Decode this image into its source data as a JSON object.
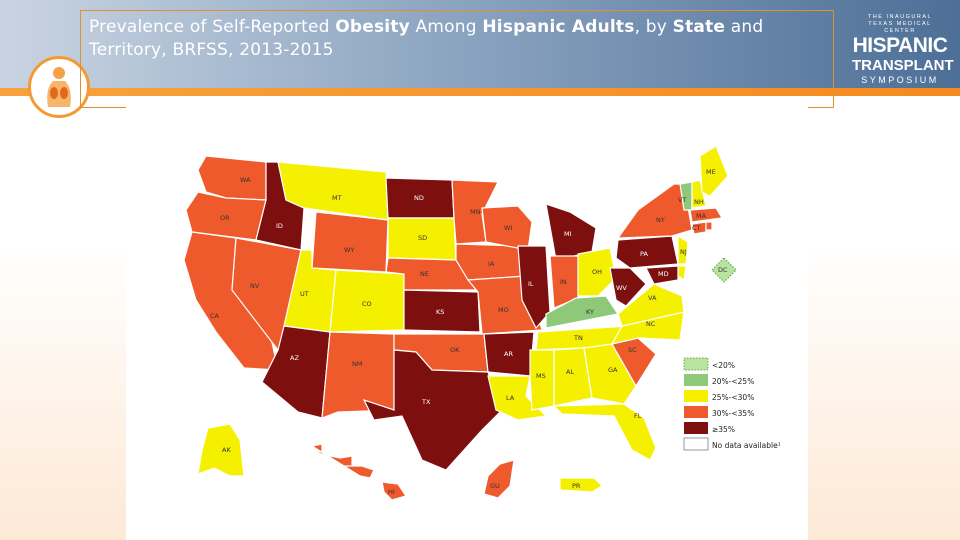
{
  "slide": {
    "title_parts": [
      {
        "text": "Prevalence of Self-Reported ",
        "bold": false
      },
      {
        "text": "Obesity",
        "bold": true
      },
      {
        "text": " Among ",
        "bold": false
      },
      {
        "text": "Hispanic Adults",
        "bold": true
      },
      {
        "text": ", by ",
        "bold": false
      },
      {
        "text": "State",
        "bold": true
      },
      {
        "text": " and Territory, BRFSS, 2013-2015",
        "bold": false
      }
    ]
  },
  "brand": {
    "line1": "THE INAUGURAL",
    "line2": "TEXAS MEDICAL CENTER",
    "line3": "HISPANIC",
    "line4": "TRANSPLANT",
    "line5": "SYMPOSIUM"
  },
  "colors": {
    "lt20": "#b9e3a0",
    "c20_25": "#8ec97a",
    "c25_30": "#f5f000",
    "c30_35": "#ef5a2c",
    "ge35": "#7d0f0f",
    "na": "#ffffff"
  },
  "legend": [
    {
      "key": "lt20",
      "label": "<20%"
    },
    {
      "key": "c20_25",
      "label": "20%-<25%"
    },
    {
      "key": "c25_30",
      "label": "25%-<30%"
    },
    {
      "key": "c30_35",
      "label": "30%-<35%"
    },
    {
      "key": "ge35",
      "label": "≥35%"
    },
    {
      "key": "na",
      "label": "No data available¹"
    }
  ],
  "states": {
    "WA": "c30_35",
    "OR": "c30_35",
    "CA": "c30_35",
    "NV": "c30_35",
    "ID": "ge35",
    "MT": "c25_30",
    "WY": "c30_35",
    "UT": "c25_30",
    "CO": "c25_30",
    "AZ": "ge35",
    "NM": "c30_35",
    "ND": "ge35",
    "SD": "c25_30",
    "NE": "c30_35",
    "KS": "ge35",
    "OK": "c30_35",
    "TX": "ge35",
    "MN": "c30_35",
    "IA": "c30_35",
    "MO": "c30_35",
    "AR": "ge35",
    "LA": "c25_30",
    "WI": "c30_35",
    "IL": "ge35",
    "MI": "ge35",
    "IN": "c30_35",
    "OH": "c25_30",
    "KY": "c20_25",
    "TN": "c25_30",
    "MS": "c25_30",
    "AL": "c25_30",
    "GA": "c25_30",
    "FL": "c25_30",
    "SC": "c30_35",
    "NC": "c25_30",
    "VA": "c25_30",
    "WV": "ge35",
    "PA": "ge35",
    "NY": "c30_35",
    "VT": "c20_25",
    "NH": "c25_30",
    "ME": "c25_30",
    "MA": "c30_35",
    "RI": "c30_35",
    "CT": "c30_35",
    "NJ": "c25_30",
    "DE": "c25_30",
    "MD": "ge35",
    "DC": "lt20",
    "AK": "c25_30",
    "HI": "c30_35",
    "GU": "c30_35",
    "PR": "c25_30"
  }
}
